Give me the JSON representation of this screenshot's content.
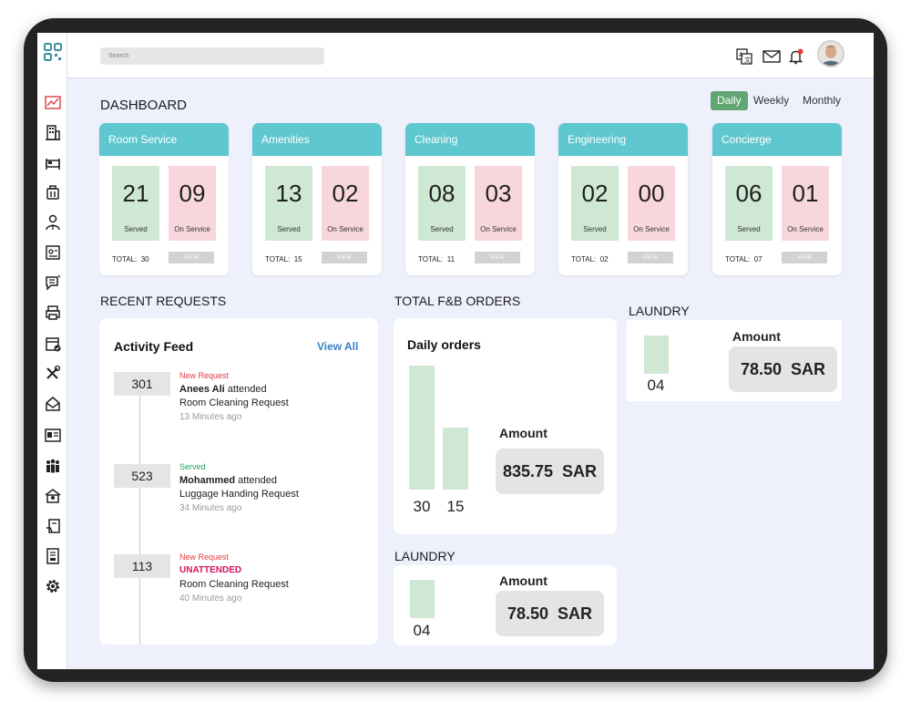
{
  "search": {
    "placeholder": "Search"
  },
  "dashboard": {
    "title": "DASHBOARD"
  },
  "periods": [
    {
      "label": "Daily",
      "active": true
    },
    {
      "label": "Weekly",
      "active": false
    },
    {
      "label": "Monthly",
      "active": false
    }
  ],
  "services": [
    {
      "name": "Room Service",
      "served": "21",
      "on_service": "09",
      "total_label": "TOTAL:",
      "total": "30"
    },
    {
      "name": "Amenities",
      "served": "13",
      "on_service": "02",
      "total_label": "TOTAL:",
      "total": "15"
    },
    {
      "name": "Cleaning",
      "served": "08",
      "on_service": "03",
      "total_label": "TOTAL:",
      "total": "11"
    },
    {
      "name": "Engineering",
      "served": "02",
      "on_service": "00",
      "total_label": "TOTAL:",
      "total": "02"
    },
    {
      "name": "Concierge",
      "served": "06",
      "on_service": "01",
      "total_label": "TOTAL:",
      "total": "07"
    }
  ],
  "labels": {
    "served": "Served",
    "on_service": "On Service",
    "view": "VIEW"
  },
  "recent_requests": {
    "title": "RECENT REQUESTS",
    "feed_title": "Activity Feed",
    "view_all": "View All",
    "items": [
      {
        "room": "301",
        "status": "New Request",
        "name": "Anees Ali",
        "action": " attended",
        "request": "Room Cleaning Request",
        "time": "13 Minutes ago"
      },
      {
        "room": "523",
        "status": "Served",
        "name": "Mohammed",
        "action": " attended",
        "request": "Luggage Handing Request",
        "time": "34 Minutes ago"
      },
      {
        "room": "113",
        "status": "New Request",
        "name": "UNATTENDED",
        "action": "",
        "request": "Room Cleaning Request",
        "time": "40 Minutes ago"
      }
    ]
  },
  "fnb": {
    "title": "TOTAL F&B ORDERS",
    "chart_title": "Daily orders",
    "amount_label": "Amount",
    "amount": "835.75",
    "currency": "SAR"
  },
  "laundry_bottom": {
    "title": "LAUNDRY",
    "value": "04",
    "amount_label": "Amount",
    "amount": "78.50",
    "currency": "SAR"
  },
  "laundry_right": {
    "title": "LAUNDRY",
    "value": "04",
    "amount_label": "Amount",
    "amount": "78.50",
    "currency": "SAR"
  },
  "chart_data": {
    "type": "bar",
    "title": "Daily orders",
    "categories": [
      "",
      ""
    ],
    "values": [
      30,
      15
    ],
    "bar_color": "#cfe8d4"
  },
  "colors": {
    "card_header": "#5fc7cf",
    "served_bg": "#cfe8d4",
    "on_service_bg": "#f8d7dc",
    "active_period": "#61a673",
    "link": "#3b82c4",
    "new_request": "#e03b3b",
    "served_status": "#22a063",
    "unattended": "#d6135f"
  },
  "icons": {
    "sidebar": [
      "dashboard-chart-icon",
      "building-icon",
      "bed-icon",
      "luggage-icon",
      "staff-icon",
      "id-card-icon",
      "chat-icon",
      "printer-icon",
      "calendar-check-icon",
      "tools-icon",
      "mail-icon",
      "contact-card-icon",
      "users-group-icon",
      "spa-icon",
      "clipboard-icon",
      "report-icon",
      "settings-gear-icon"
    ],
    "topbar": [
      "translate-icon",
      "mail-icon",
      "bell-icon",
      "avatar"
    ]
  }
}
